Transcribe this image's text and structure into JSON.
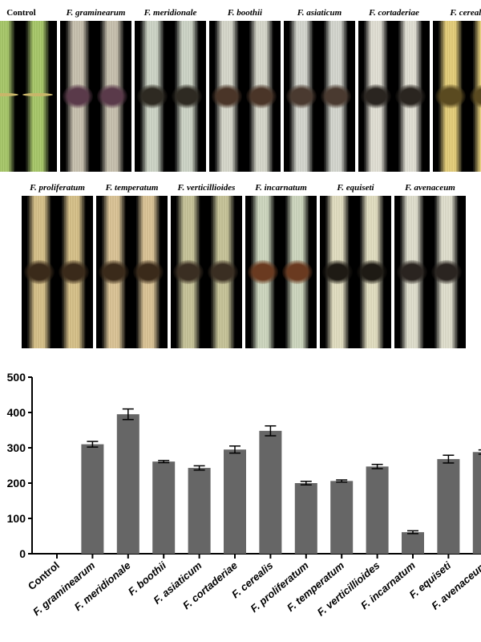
{
  "panels": {
    "top_row": [
      {
        "label": "Control",
        "tint": "#a9c96a",
        "lesion": "none"
      },
      {
        "label": "F. graminearum",
        "tint": "#c9c2b0",
        "lesion": "#5a3a4a"
      },
      {
        "label": "F. meridionale",
        "tint": "#cfd6c8",
        "lesion": "#2e2a22"
      },
      {
        "label": "F. boothii",
        "tint": "#d8d9cc",
        "lesion": "#4a3528"
      },
      {
        "label": "F. asiaticum",
        "tint": "#d6d8d0",
        "lesion": "#4a3a30"
      },
      {
        "label": "F. cortaderiae",
        "tint": "#e3e1d6",
        "lesion": "#2a2520"
      },
      {
        "label": "F. cerealis",
        "tint": "#e6cf7a",
        "lesion": "#5a4a20"
      }
    ],
    "bottom_row": [
      {
        "label": "F. proliferatum",
        "tint": "#d8c28a",
        "lesion": "#3a2a1a"
      },
      {
        "label": "F. temperatum",
        "tint": "#dcc597",
        "lesion": "#3a2a1a"
      },
      {
        "label": "F. verticillioides",
        "tint": "#c8c59a",
        "lesion": "#3a2e22"
      },
      {
        "label": "F. incarnatum",
        "tint": "#cfd8c0",
        "lesion": "#6a3a20"
      },
      {
        "label": "F. equiseti",
        "tint": "#e3dfc2",
        "lesion": "#1e1a14"
      },
      {
        "label": "F. avenaceum",
        "tint": "#e1e0cf",
        "lesion": "#2a2420"
      }
    ]
  },
  "chart_data": {
    "type": "bar",
    "categories": [
      "Control",
      "F. graminearum",
      "F. meridionale",
      "F. boothii",
      "F. asiaticum",
      "F. cortaderiae",
      "F. cerealis",
      "F. proliferatum",
      "F. temperatum",
      "F. verticillioides",
      "F. incarnatum",
      "F. equiseti",
      "F. avenaceum"
    ],
    "values": [
      0,
      310,
      395,
      261,
      243,
      295,
      348,
      200,
      206,
      247,
      61,
      268,
      288
    ],
    "errors": [
      0,
      8,
      15,
      3,
      6,
      10,
      14,
      5,
      3,
      6,
      4,
      11,
      6
    ],
    "ylim": [
      0,
      500
    ],
    "yticks": [
      "0",
      "100",
      "200",
      "300",
      "400",
      "500"
    ],
    "bar_color": "#666666",
    "xlabel": "",
    "ylabel": ""
  }
}
